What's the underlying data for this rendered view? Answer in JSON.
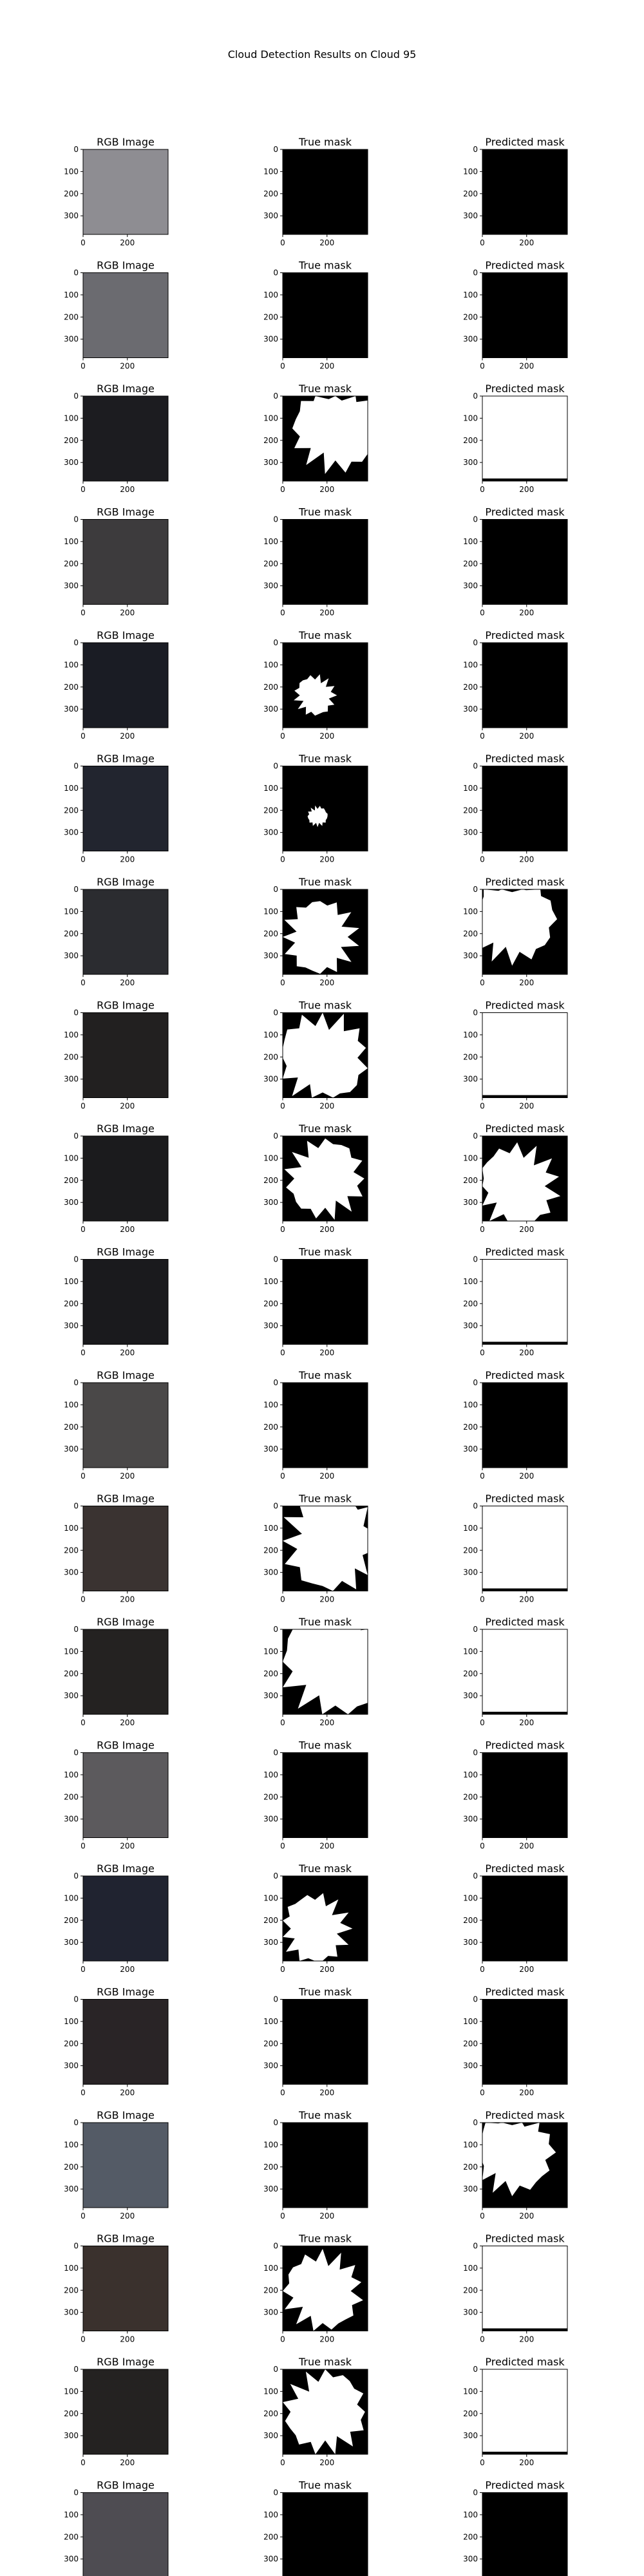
{
  "figure": {
    "title": "Cloud Detection Results on Cloud 95"
  },
  "chart_data": {
    "type": "image-grid",
    "title": "Cloud Detection Results on Cloud 95",
    "columns": [
      "RGB Image",
      "True mask",
      "Predicted mask"
    ],
    "rows": 20,
    "x_ticks": [
      "0",
      "200"
    ],
    "y_ticks": [
      "0",
      "100",
      "200",
      "300"
    ],
    "image_extent": {
      "x": [
        0,
        384
      ],
      "y": [
        0,
        384
      ]
    },
    "colors": {
      "mask_cloud": "#ffffff",
      "mask_clear": "#000000"
    },
    "rgb_tint": [
      "#8e8d92",
      "#6b6b70",
      "#1c1c20",
      "#3d3b3d",
      "#1a1c24",
      "#22252f",
      "#2b2c30",
      "#222020",
      "#1b1b1d",
      "#1a1a1d",
      "#4a4848",
      "#3a3331",
      "#242221",
      "#5c5a5d",
      "#202330",
      "#292426",
      "#545b66",
      "#3a312d",
      "#242221",
      "#4e4c52"
    ],
    "true_mask_cloud_fraction": [
      0,
      0,
      0.55,
      0,
      0.12,
      0.03,
      0.4,
      0.6,
      0.45,
      0,
      0,
      0.75,
      0.9,
      0,
      0.35,
      0,
      0,
      0.45,
      0.5,
      0
    ],
    "predicted_mask_cloud_fraction": [
      0,
      0,
      0.97,
      0,
      0,
      0,
      0.55,
      0.98,
      0.5,
      0.97,
      0,
      0.99,
      0.99,
      0,
      0,
      0,
      0.5,
      0.99,
      0.96,
      0
    ]
  }
}
